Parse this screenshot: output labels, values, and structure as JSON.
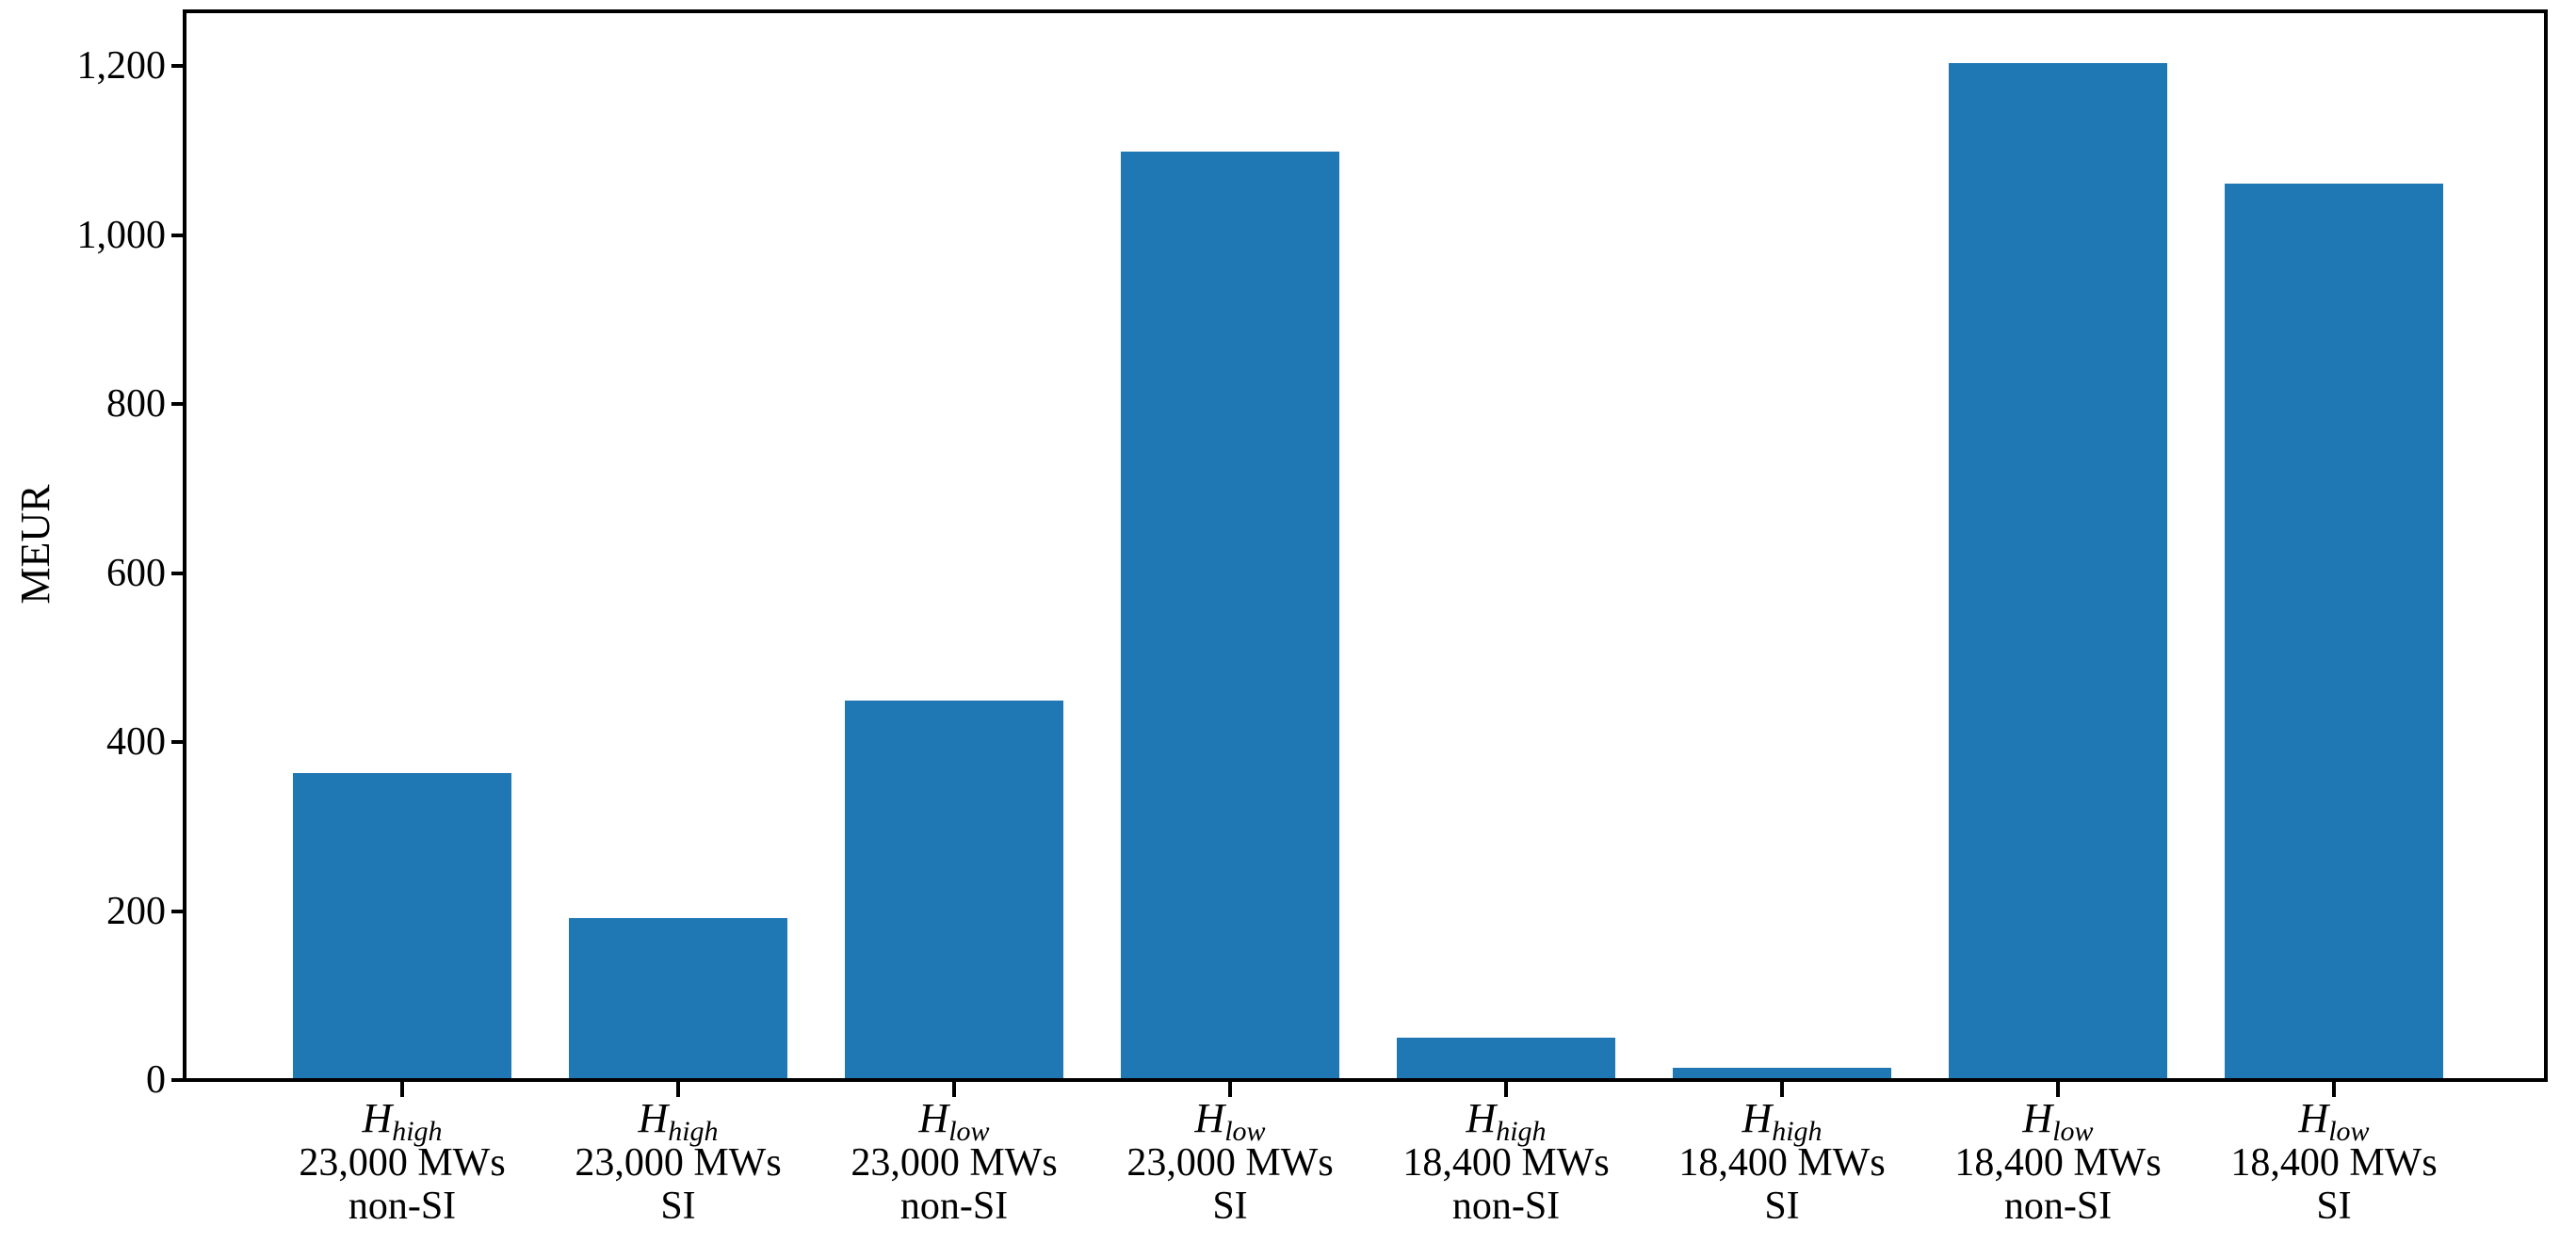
{
  "figure": {
    "background": "#ffffff",
    "spine_color": "#000000",
    "text_color": "#000000"
  },
  "chart_data": {
    "type": "bar",
    "title": "",
    "xlabel": "",
    "ylabel": "MEUR",
    "ylim": [
      0,
      1265
    ],
    "grid": false,
    "legend": false,
    "bar_color": "#1f77b4",
    "yticks": [
      {
        "value": 0,
        "label": "0"
      },
      {
        "value": 200,
        "label": "200"
      },
      {
        "value": 400,
        "label": "400"
      },
      {
        "value": 600,
        "label": "600"
      },
      {
        "value": 800,
        "label": "800"
      },
      {
        "value": 1000,
        "label": "1,000"
      },
      {
        "value": 1200,
        "label": "1,200"
      }
    ],
    "categories": [
      {
        "var": "H",
        "sub": "high",
        "capacity": "23,000 MWs",
        "mode": "non-SI"
      },
      {
        "var": "H",
        "sub": "high",
        "capacity": "23,000 MWs",
        "mode": "SI"
      },
      {
        "var": "H",
        "sub": "low",
        "capacity": "23,000 MWs",
        "mode": "non-SI"
      },
      {
        "var": "H",
        "sub": "low",
        "capacity": "23,000 MWs",
        "mode": "SI"
      },
      {
        "var": "H",
        "sub": "high",
        "capacity": "18,400 MWs",
        "mode": "non-SI"
      },
      {
        "var": "H",
        "sub": "high",
        "capacity": "18,400 MWs",
        "mode": "SI"
      },
      {
        "var": "H",
        "sub": "low",
        "capacity": "18,400 MWs",
        "mode": "non-SI"
      },
      {
        "var": "H",
        "sub": "low",
        "capacity": "18,400 MWs",
        "mode": "SI"
      }
    ],
    "values": [
      363,
      192,
      449,
      1099,
      50,
      15,
      1204,
      1061
    ]
  }
}
